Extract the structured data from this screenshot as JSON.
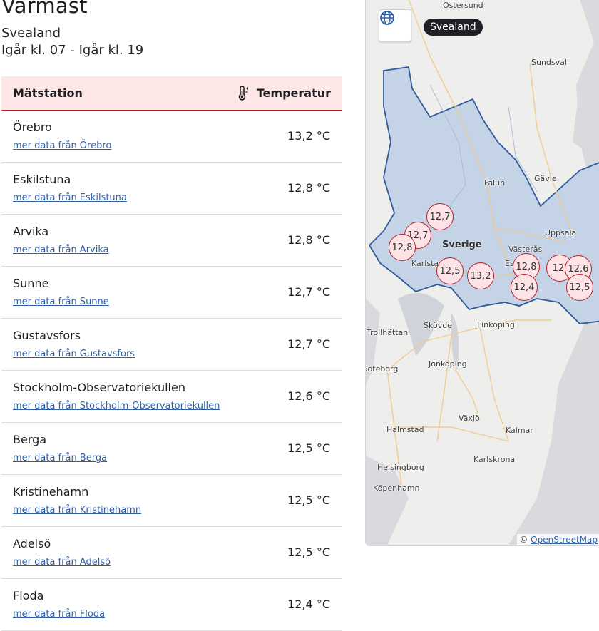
{
  "header": {
    "title": "Varmast",
    "region": "Svealand",
    "period": "Igår kl. 07 - Igår kl. 19"
  },
  "table": {
    "col_station": "Mätstation",
    "col_temp": "Temperatur",
    "temp_icon": "thermometer-icon",
    "rows": [
      {
        "name": "Örebro",
        "link": "mer data från Örebro",
        "temp": "13,2 °C"
      },
      {
        "name": "Eskilstuna",
        "link": "mer data från Eskilstuna",
        "temp": "12,8 °C"
      },
      {
        "name": "Arvika",
        "link": "mer data från Arvika",
        "temp": "12,8 °C"
      },
      {
        "name": "Sunne",
        "link": "mer data från Sunne",
        "temp": "12,7 °C"
      },
      {
        "name": "Gustavsfors",
        "link": "mer data från Gustavsfors",
        "temp": "12,7 °C"
      },
      {
        "name": "Stockholm-Observatoriekullen",
        "link": "mer data från Stockholm-Observatoriekullen",
        "temp": "12,6 °C"
      },
      {
        "name": "Berga",
        "link": "mer data från Berga",
        "temp": "12,5 °C"
      },
      {
        "name": "Kristinehamn",
        "link": "mer data från Kristinehamn",
        "temp": "12,5 °C"
      },
      {
        "name": "Adelsö",
        "link": "mer data från Adelsö",
        "temp": "12,5 °C"
      },
      {
        "name": "Floda",
        "link": "mer data från Floda",
        "temp": "12,4 °C"
      }
    ]
  },
  "map": {
    "globe_icon": "globe-icon",
    "region_chip": "Svealand",
    "country": "Sverige",
    "cities": {
      "ostersund": "Östersund",
      "sundsvall": "Sundsvall",
      "falun": "Falun",
      "gavle": "Gävle",
      "uppsala": "Uppsala",
      "vasteras": "Västerås",
      "karlstad": "Karlstad",
      "eskilstuna": "Es",
      "trollhattan": "Trollhättan",
      "skovde": "Skövde",
      "linkoping": "Linköping",
      "goteborg": "Göteborg",
      "jonkoping": "Jönköping",
      "vaxjo": "Växjö",
      "halmstad": "Halmstad",
      "kalmar": "Kalmar",
      "karlskrona": "Karlskrona",
      "helsingborg": "Helsingborg",
      "kopenhamn": "Köpenhamn"
    },
    "markers": [
      {
        "label": "12,7"
      },
      {
        "label": "12,7"
      },
      {
        "label": "12,8"
      },
      {
        "label": "12,5"
      },
      {
        "label": "13,2"
      },
      {
        "label": "12,8"
      },
      {
        "label": "12,4"
      },
      {
        "label": "12,"
      },
      {
        "label": "12,6"
      },
      {
        "label": "12,5"
      }
    ],
    "attribution_prefix": "©",
    "attribution_link": "OpenStreetMap"
  },
  "colors": {
    "header_bg": "#fde7e7",
    "header_border": "#b3202a",
    "link": "#2f5fa8",
    "region_fill": "#c5d3e6",
    "region_border": "#2f5b9c",
    "marker_fill": "#fde3e5",
    "marker_border": "#b6212f"
  }
}
